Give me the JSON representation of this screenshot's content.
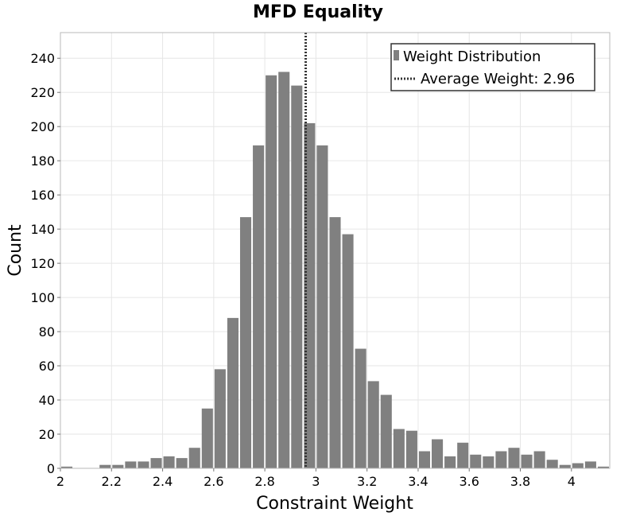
{
  "chart_data": {
    "type": "bar",
    "title": "MFD Equality",
    "xlabel": "Constraint Weight",
    "ylabel": "Count",
    "xlim": [
      2.0,
      4.15
    ],
    "ylim": [
      0,
      255
    ],
    "grid": true,
    "legend_position": "top-right",
    "bin_width": 0.05,
    "x_ticks": [
      2,
      2.2,
      2.4,
      2.6,
      2.8,
      3,
      3.2,
      3.4,
      3.6,
      3.8,
      4
    ],
    "x_tick_labels": [
      "2",
      "2.2",
      "2.4",
      "2.6",
      "2.8",
      "3",
      "3.2",
      "3.4",
      "3.6",
      "3.8",
      "4"
    ],
    "y_ticks": [
      0,
      20,
      40,
      60,
      80,
      100,
      120,
      140,
      160,
      180,
      200,
      220,
      240
    ],
    "y_tick_labels": [
      "0",
      "20",
      "40",
      "60",
      "80",
      "100",
      "120",
      "140",
      "160",
      "180",
      "200",
      "220",
      "240"
    ],
    "series": [
      {
        "name": "Weight Distribution",
        "color": "#808080",
        "bin_starts": [
          2.0,
          2.05,
          2.1,
          2.15,
          2.2,
          2.25,
          2.3,
          2.35,
          2.4,
          2.45,
          2.5,
          2.55,
          2.6,
          2.65,
          2.7,
          2.75,
          2.8,
          2.85,
          2.9,
          2.95,
          3.0,
          3.05,
          3.1,
          3.15,
          3.2,
          3.25,
          3.3,
          3.35,
          3.4,
          3.45,
          3.5,
          3.55,
          3.6,
          3.65,
          3.7,
          3.75,
          3.8,
          3.85,
          3.9,
          3.95,
          4.0,
          4.05,
          4.1
        ],
        "values": [
          1,
          0,
          0,
          2,
          2,
          4,
          4,
          6,
          7,
          6,
          12,
          35,
          58,
          88,
          147,
          189,
          230,
          232,
          224,
          202,
          189,
          147,
          137,
          70,
          51,
          43,
          23,
          22,
          10,
          17,
          7,
          15,
          8,
          7,
          10,
          12,
          8,
          10,
          5,
          2,
          3,
          4,
          1
        ]
      }
    ],
    "reference_line": {
      "name": "Average Weight: 2.96",
      "x": 2.96,
      "color": "#333333",
      "style": "dotted"
    }
  }
}
